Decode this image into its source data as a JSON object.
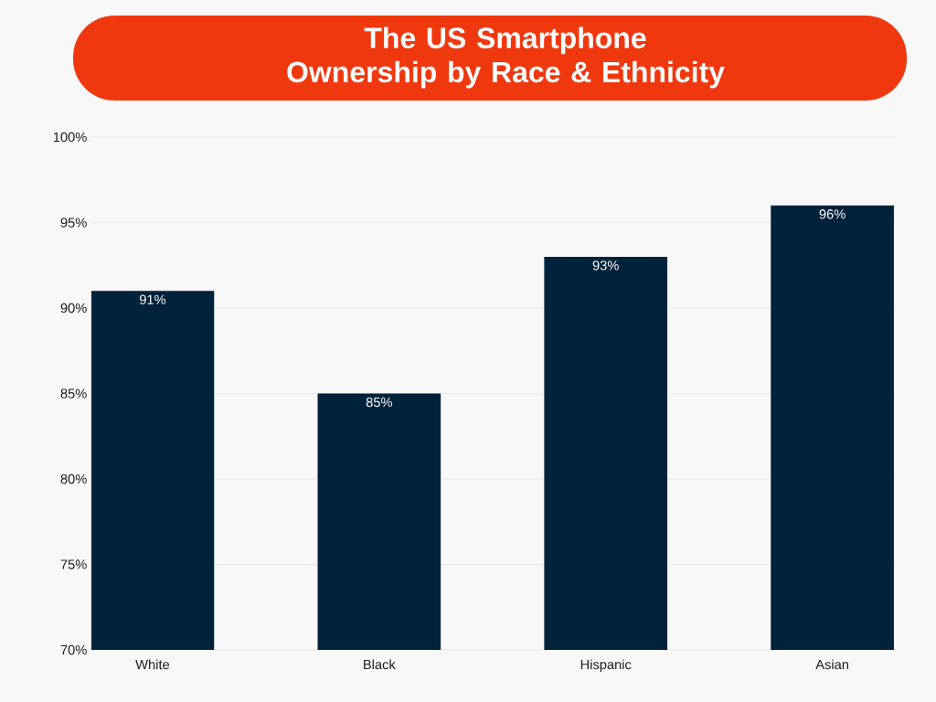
{
  "chart_data": {
    "type": "bar",
    "title": "The US Smartphone Ownership by Race & Ethnicity",
    "categories": [
      "White",
      "Black",
      "Hispanic",
      "Asian"
    ],
    "values": [
      91,
      85,
      93,
      96
    ],
    "value_labels": [
      "91%",
      "85%",
      "93%",
      "96%"
    ],
    "color": "#01223b",
    "ylim": [
      70,
      100
    ],
    "yticks": [
      {
        "value": 70,
        "label": "70%"
      },
      {
        "value": 75,
        "label": "75%"
      },
      {
        "value": 80,
        "label": "80%"
      },
      {
        "value": 85,
        "label": "85%"
      },
      {
        "value": 90,
        "label": "90%"
      },
      {
        "value": 95,
        "label": "95%"
      },
      {
        "value": 100,
        "label": "100%"
      }
    ],
    "grid": "y"
  }
}
